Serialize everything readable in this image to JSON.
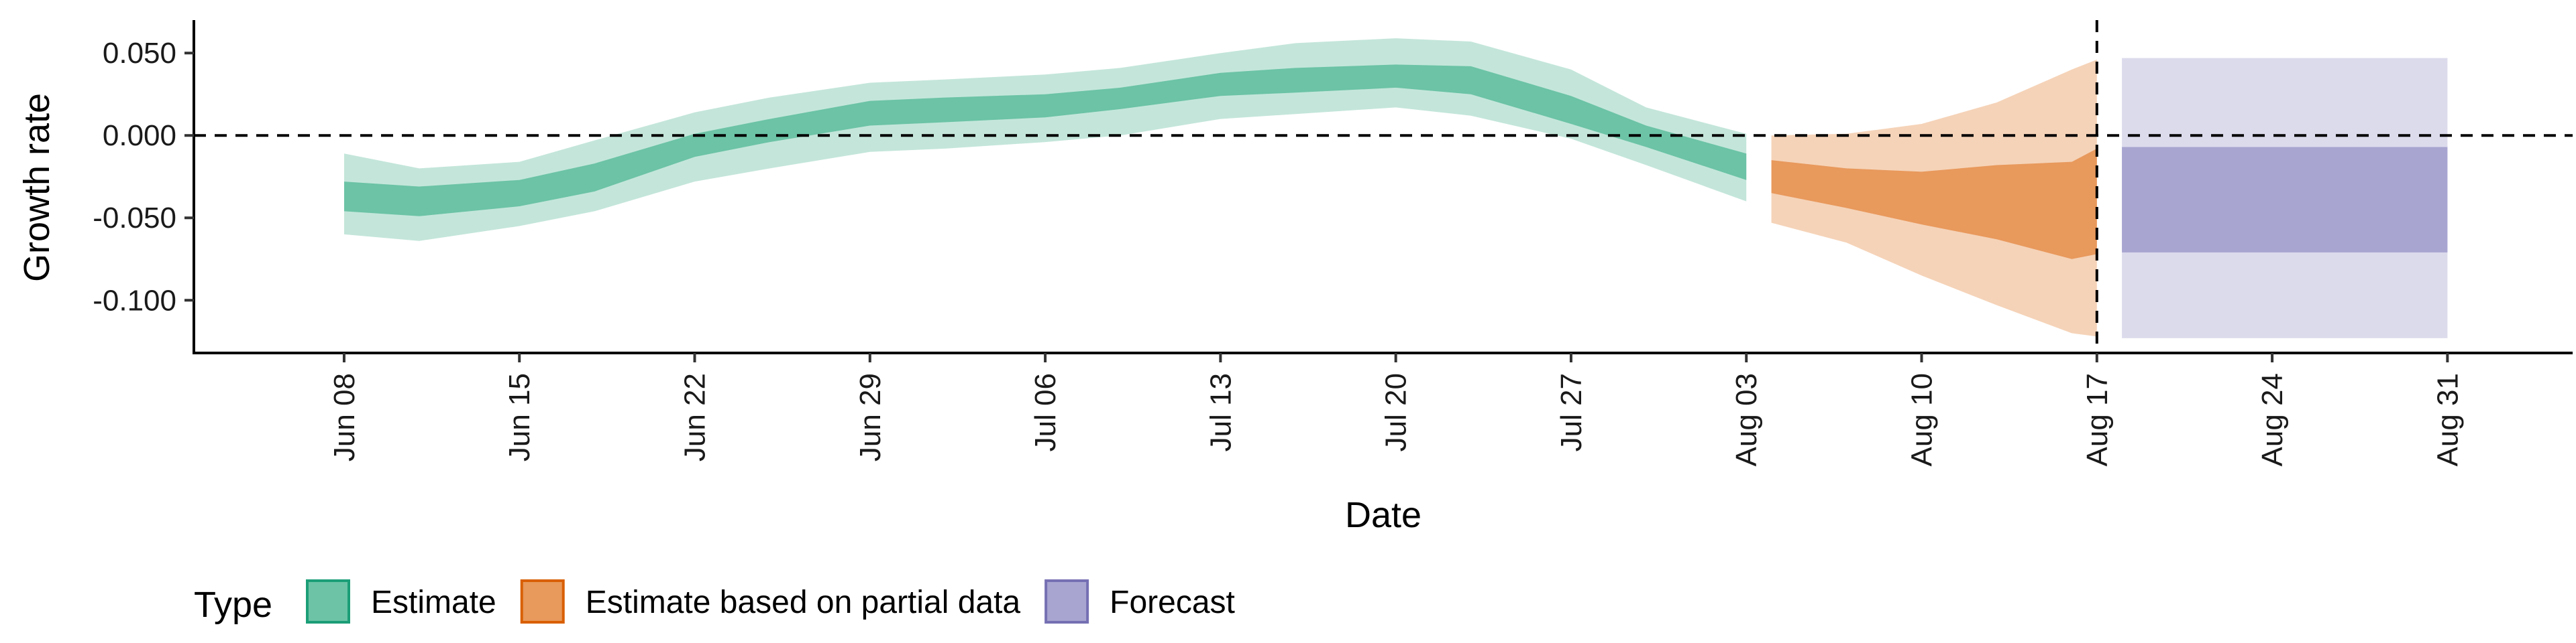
{
  "chart_data": {
    "type": "area",
    "xlabel": "Date",
    "ylabel": "Growth rate",
    "x_range": [
      "2020-06-02",
      "2020-09-05"
    ],
    "ylim": [
      -0.132,
      0.07
    ],
    "y_ticks": [
      0.05,
      0.0,
      -0.05,
      -0.1
    ],
    "y_tick_labels": [
      "0.050",
      "0.000",
      "-0.050",
      "-0.100"
    ],
    "x_ticks": [
      "2020-06-08",
      "2020-06-15",
      "2020-06-22",
      "2020-06-29",
      "2020-07-06",
      "2020-07-13",
      "2020-07-20",
      "2020-07-27",
      "2020-08-03",
      "2020-08-10",
      "2020-08-17",
      "2020-08-24",
      "2020-08-31"
    ],
    "x_tick_labels": [
      "Jun 08",
      "Jun 15",
      "Jun 22",
      "Jun 29",
      "Jul 06",
      "Jul 13",
      "Jul 20",
      "Jul 27",
      "Aug 03",
      "Aug 10",
      "Aug 17",
      "Aug 24",
      "Aug 31"
    ],
    "reference_lines": {
      "horizontal_y": 0.0,
      "vertical_date": "2020-08-17",
      "style": "dashed"
    },
    "grid": false,
    "legend": {
      "title": "Type",
      "position": "bottom-left",
      "entries": [
        {
          "label": "Estimate",
          "fill": "#6cc3a6",
          "border": "#1b9e77"
        },
        {
          "label": "Estimate based on partial data",
          "fill": "#e8995c",
          "border": "#d95f02"
        },
        {
          "label": "Forecast",
          "fill": "#a8a5d1",
          "border": "#7570b3"
        }
      ]
    },
    "series": [
      {
        "name": "Estimate",
        "inner_color": "#6cc3a6",
        "outer_color": "#c4e6da",
        "points": [
          {
            "date": "2020-06-08",
            "lo90": -0.06,
            "lo50": -0.046,
            "hi50": -0.028,
            "hi90": -0.011
          },
          {
            "date": "2020-06-11",
            "lo90": -0.064,
            "lo50": -0.049,
            "hi50": -0.031,
            "hi90": -0.02
          },
          {
            "date": "2020-06-15",
            "lo90": -0.055,
            "lo50": -0.043,
            "hi50": -0.027,
            "hi90": -0.016
          },
          {
            "date": "2020-06-18",
            "lo90": -0.046,
            "lo50": -0.034,
            "hi50": -0.017,
            "hi90": -0.003
          },
          {
            "date": "2020-06-22",
            "lo90": -0.028,
            "lo50": -0.013,
            "hi50": 0.001,
            "hi90": 0.014
          },
          {
            "date": "2020-06-25",
            "lo90": -0.02,
            "lo50": -0.004,
            "hi50": 0.01,
            "hi90": 0.023
          },
          {
            "date": "2020-06-29",
            "lo90": -0.01,
            "lo50": 0.006,
            "hi50": 0.021,
            "hi90": 0.032
          },
          {
            "date": "2020-07-02",
            "lo90": -0.008,
            "lo50": 0.008,
            "hi50": 0.023,
            "hi90": 0.034
          },
          {
            "date": "2020-07-06",
            "lo90": -0.004,
            "lo50": 0.011,
            "hi50": 0.025,
            "hi90": 0.037
          },
          {
            "date": "2020-07-09",
            "lo90": 0.0,
            "lo50": 0.016,
            "hi50": 0.029,
            "hi90": 0.041
          },
          {
            "date": "2020-07-13",
            "lo90": 0.01,
            "lo50": 0.024,
            "hi50": 0.038,
            "hi90": 0.05
          },
          {
            "date": "2020-07-16",
            "lo90": 0.013,
            "lo50": 0.026,
            "hi50": 0.041,
            "hi90": 0.056
          },
          {
            "date": "2020-07-20",
            "lo90": 0.017,
            "lo50": 0.029,
            "hi50": 0.043,
            "hi90": 0.059
          },
          {
            "date": "2020-07-23",
            "lo90": 0.012,
            "lo50": 0.025,
            "hi50": 0.042,
            "hi90": 0.057
          },
          {
            "date": "2020-07-27",
            "lo90": -0.002,
            "lo50": 0.007,
            "hi50": 0.024,
            "hi90": 0.04
          },
          {
            "date": "2020-07-30",
            "lo90": -0.018,
            "lo50": -0.007,
            "hi50": 0.006,
            "hi90": 0.017
          },
          {
            "date": "2020-08-03",
            "lo90": -0.04,
            "lo50": -0.027,
            "hi50": -0.011,
            "hi90": 0.001
          }
        ]
      },
      {
        "name": "Estimate based on partial data",
        "inner_color": "#e8995c",
        "outer_color": "#f5d3b8",
        "points": [
          {
            "date": "2020-08-04",
            "lo90": -0.053,
            "lo50": -0.035,
            "hi50": -0.015,
            "hi90": 0.0
          },
          {
            "date": "2020-08-07",
            "lo90": -0.065,
            "lo50": -0.044,
            "hi50": -0.02,
            "hi90": 0.001
          },
          {
            "date": "2020-08-10",
            "lo90": -0.085,
            "lo50": -0.054,
            "hi50": -0.022,
            "hi90": 0.007
          },
          {
            "date": "2020-08-13",
            "lo90": -0.103,
            "lo50": -0.063,
            "hi50": -0.018,
            "hi90": 0.02
          },
          {
            "date": "2020-08-16",
            "lo90": -0.12,
            "lo50": -0.075,
            "hi50": -0.016,
            "hi90": 0.04
          },
          {
            "date": "2020-08-17",
            "lo90": -0.122,
            "lo50": -0.072,
            "hi50": -0.008,
            "hi90": 0.046
          }
        ]
      },
      {
        "name": "Forecast",
        "inner_color": "#a8a5d1",
        "outer_color": "#dcdbec",
        "points": [
          {
            "date": "2020-08-18",
            "lo90": -0.123,
            "lo50": -0.071,
            "hi50": -0.007,
            "hi90": 0.047
          },
          {
            "date": "2020-08-31",
            "lo90": -0.123,
            "lo50": -0.071,
            "hi50": -0.007,
            "hi90": 0.047
          }
        ]
      }
    ]
  }
}
